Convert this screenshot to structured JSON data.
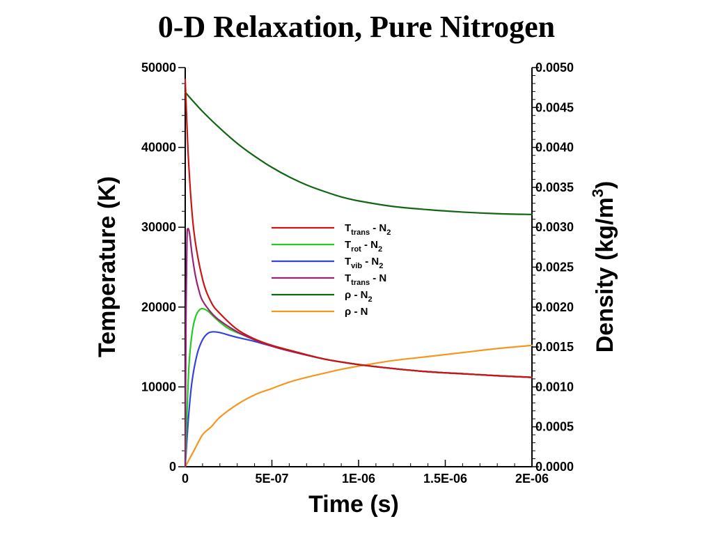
{
  "chart_data": {
    "type": "line",
    "title": "0-D Relaxation, Pure Nitrogen",
    "xlabel": "Time (s)",
    "ylabel_left": "Temperature (K)",
    "ylabel_right": "Density (kg/m",
    "ylabel_right_sup": "3",
    "ylabel_right_close": ")",
    "xlim": [
      0,
      2e-06
    ],
    "ylim_left": [
      0,
      50000
    ],
    "ylim_right": [
      0,
      0.005
    ],
    "x_ticks": [
      0,
      5e-07,
      1e-06,
      1.5e-06,
      2e-06
    ],
    "x_tick_labels": [
      "0",
      "5E-07",
      "1E-06",
      "1.5E-06",
      "2E-06"
    ],
    "y_left_ticks": [
      0,
      10000,
      20000,
      30000,
      40000,
      50000
    ],
    "y_left_tick_labels": [
      "0",
      "10000",
      "20000",
      "30000",
      "40000",
      "50000"
    ],
    "y_right_ticks": [
      0,
      0.0005,
      0.001,
      0.0015,
      0.002,
      0.0025,
      0.003,
      0.0035,
      0.004,
      0.0045,
      0.005
    ],
    "y_right_tick_labels": [
      "0.0000",
      "0.0005",
      "0.0010",
      "0.0015",
      "0.0020",
      "0.0025",
      "0.0030",
      "0.0035",
      "0.0040",
      "0.0045",
      "0.0050"
    ],
    "legend_placement": "center",
    "series": [
      {
        "name": "Ttrans - N2",
        "label_main": "T",
        "label_sub": "trans",
        "label_rest": " - N",
        "label_sub2": "2",
        "axis": "left",
        "color": "#cc1414",
        "x": [
          0,
          2e-08,
          5e-08,
          1e-07,
          1.5e-07,
          2e-07,
          3e-07,
          4e-07,
          5e-07,
          6e-07,
          8e-07,
          1e-06,
          1.2e-06,
          1.4e-06,
          1.6e-06,
          1.8e-06,
          2e-06
        ],
        "y": [
          48500,
          38000,
          29500,
          23500,
          20600,
          19200,
          17200,
          16000,
          15200,
          14600,
          13500,
          12800,
          12300,
          11900,
          11650,
          11400,
          11200
        ]
      },
      {
        "name": "Trot - N2",
        "label_main": "T",
        "label_sub": "rot",
        "label_rest": " - N",
        "label_sub2": "2",
        "axis": "left",
        "color": "#22cc22",
        "x": [
          0,
          2e-08,
          4e-08,
          6e-08,
          8e-08,
          1e-07,
          1.3e-07,
          1.6e-07,
          2e-07,
          2.5e-07,
          3e-07,
          4e-07,
          5e-07,
          6e-07,
          8e-07,
          1e-06,
          1.2e-06,
          1.4e-06,
          1.6e-06,
          1.8e-06,
          2e-06
        ],
        "y": [
          0,
          12000,
          16800,
          18800,
          19600,
          19800,
          19500,
          18900,
          18100,
          17300,
          16800,
          15900,
          15200,
          14600,
          13500,
          12800,
          12300,
          11900,
          11650,
          11400,
          11200
        ]
      },
      {
        "name": "Tvib - N2",
        "label_main": "T",
        "label_sub": "vib",
        "label_rest": " - N",
        "label_sub2": "2",
        "axis": "left",
        "color": "#3344dd",
        "x": [
          0,
          2e-08,
          4e-08,
          7e-08,
          1e-07,
          1.3e-07,
          1.6e-07,
          2e-07,
          2.5e-07,
          3e-07,
          4e-07,
          5e-07,
          6e-07,
          8e-07,
          1e-06,
          1.2e-06,
          1.4e-06,
          1.6e-06,
          1.8e-06,
          2e-06
        ],
        "y": [
          0,
          6500,
          10800,
          14200,
          15900,
          16700,
          16900,
          16800,
          16500,
          16200,
          15700,
          15100,
          14600,
          13500,
          12800,
          12300,
          11900,
          11650,
          11400,
          11200
        ]
      },
      {
        "name": "Ttrans - N",
        "label_main": "T",
        "label_sub": "trans",
        "label_rest": " - N",
        "label_sub2": "",
        "axis": "left",
        "color": "#992277",
        "x": [
          0,
          5e-09,
          1e-08,
          1.5e-08,
          2.5e-08,
          4e-08,
          6e-08,
          8e-08,
          1e-07,
          1.5e-07,
          2e-07,
          3e-07,
          4e-07,
          5e-07,
          6e-07,
          8e-07,
          1e-06,
          1.2e-06,
          1.4e-06,
          1.6e-06,
          1.8e-06,
          2e-06
        ],
        "y": [
          0,
          20000,
          28500,
          29800,
          29200,
          26500,
          23800,
          22000,
          20800,
          19300,
          18300,
          16900,
          15900,
          15100,
          14500,
          13500,
          12800,
          12300,
          11900,
          11650,
          11400,
          11200
        ]
      },
      {
        "name": "ρ - N2",
        "label_main": "ρ",
        "label_sub": "",
        "label_rest": " - N",
        "label_sub2": "2",
        "axis": "right",
        "color": "#116611",
        "x": [
          0,
          1e-07,
          2e-07,
          3e-07,
          4e-07,
          5e-07,
          6e-07,
          7e-07,
          8e-07,
          9e-07,
          1e-06,
          1.2e-06,
          1.4e-06,
          1.6e-06,
          1.8e-06,
          2e-06
        ],
        "y": [
          0.00469,
          0.00445,
          0.00424,
          0.00405,
          0.00389,
          0.00375,
          0.00363,
          0.00353,
          0.00345,
          0.00338,
          0.00333,
          0.00326,
          0.00322,
          0.00319,
          0.00317,
          0.00316
        ]
      },
      {
        "name": "ρ - N",
        "label_main": "ρ",
        "label_sub": "",
        "label_rest": " - N",
        "label_sub2": "",
        "axis": "right",
        "color": "#f5961e",
        "x": [
          0,
          5e-08,
          1e-07,
          1.5e-07,
          2e-07,
          3e-07,
          4e-07,
          5e-07,
          6e-07,
          7e-07,
          8e-07,
          9e-07,
          1e-06,
          1.2e-06,
          1.4e-06,
          1.6e-06,
          1.8e-06,
          2e-06
        ],
        "y": [
          0,
          0.0002,
          0.0004,
          0.0005,
          0.00062,
          0.00078,
          0.0009,
          0.00098,
          0.00106,
          0.00112,
          0.00117,
          0.00122,
          0.00126,
          0.00133,
          0.00138,
          0.00143,
          0.00148,
          0.00152
        ]
      }
    ]
  }
}
